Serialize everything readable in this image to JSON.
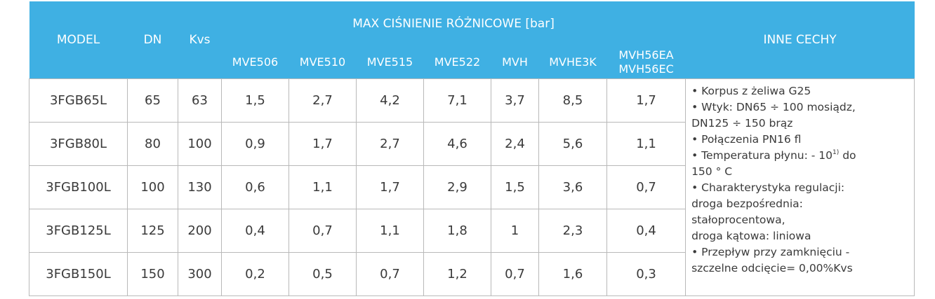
{
  "headers": {
    "model": "MODEL",
    "dn": "DN",
    "kvs": "Kvs",
    "group": "MAX CIŚNIENIE RÓŻNICOWE [bar]",
    "features": "INNE CECHY",
    "sub": [
      "MVE506",
      "MVE510",
      "MVE515",
      "MVE522",
      "MVH",
      "MVHE3K",
      "MVH56EA",
      "MVH56EC"
    ]
  },
  "rows": [
    {
      "model": "3FGB65L",
      "dn": "65",
      "kvs": "63",
      "p": [
        "1,5",
        "2,7",
        "4,2",
        "7,1",
        "3,7",
        "8,5",
        "1,7"
      ]
    },
    {
      "model": "3FGB80L",
      "dn": "80",
      "kvs": "100",
      "p": [
        "0,9",
        "1,7",
        "2,7",
        "4,6",
        "2,4",
        "5,6",
        "1,1"
      ]
    },
    {
      "model": "3FGB100L",
      "dn": "100",
      "kvs": "130",
      "p": [
        "0,6",
        "1,1",
        "1,7",
        "2,9",
        "1,5",
        "3,6",
        "0,7"
      ]
    },
    {
      "model": "3FGB125L",
      "dn": "125",
      "kvs": "200",
      "p": [
        "0,4",
        "0,7",
        "1,1",
        "1,8",
        "1",
        "2,3",
        "0,4"
      ]
    },
    {
      "model": "3FGB150L",
      "dn": "150",
      "kvs": "300",
      "p": [
        "0,2",
        "0,5",
        "0,7",
        "1,2",
        "0,7",
        "1,6",
        "0,3"
      ]
    }
  ],
  "features": {
    "l1": "• Korpus z żeliwa G25",
    "l2": "• Wtyk: DN65 ÷ 100 mosiądz,",
    "l3": "DN125 ÷ 150 brąz",
    "l4": "• Połączenia PN16 fl",
    "l5a": "• Temperatura płynu: - 10",
    "l5sup": "1)",
    "l5b": " do",
    "l6": "150 ° C",
    "l7": "• Charakterystyka regulacji:",
    "l8": "droga bezpośrednia:",
    "l9": "stałoprocentowa,",
    "l10": "droga kątowa: liniowa",
    "l11": "• Przepływ przy zamknięciu -",
    "l12": "szczelne odcięcie= 0,00%Kvs"
  },
  "colors": {
    "header_bg": "#3fb0e3",
    "header_text": "#ffffff",
    "border": "#b9b9b9",
    "text": "#3a3a3a"
  }
}
